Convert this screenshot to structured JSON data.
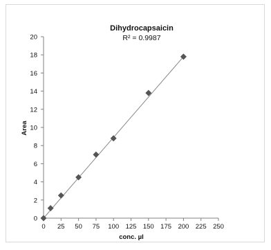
{
  "chart_data": {
    "type": "scatter",
    "title": "Dihydrocapsaicin",
    "subtitle": "R² = 0.9987",
    "xlabel": "conc. µl",
    "ylabel": "Area",
    "xlim": [
      0,
      250
    ],
    "ylim": [
      0,
      20
    ],
    "x_ticks": [
      0,
      25,
      50,
      75,
      100,
      125,
      150,
      175,
      200,
      225,
      250
    ],
    "y_ticks": [
      0,
      2,
      4,
      6,
      8,
      10,
      12,
      14,
      16,
      18,
      20
    ],
    "grid": false,
    "legend": "none",
    "marker": "diamond",
    "marker_color": "#555555",
    "trendline": {
      "type": "linear",
      "from": [
        0,
        0
      ],
      "to": [
        200,
        17.8
      ],
      "color": "#888888"
    },
    "series": [
      {
        "x": [
          0,
          10,
          25,
          50,
          75,
          100,
          150,
          200
        ],
        "y": [
          0,
          1.1,
          2.5,
          4.5,
          7.0,
          8.8,
          13.8,
          17.8
        ]
      }
    ]
  }
}
